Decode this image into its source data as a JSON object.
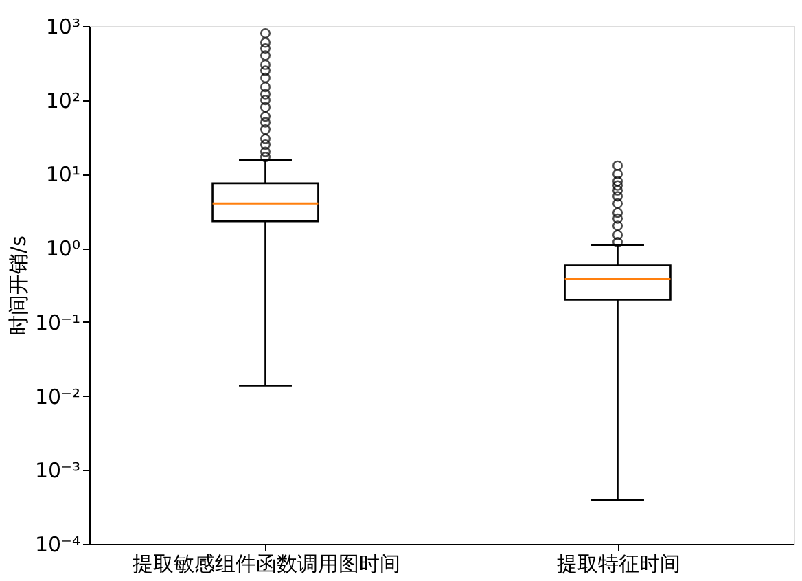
{
  "chart_data": {
    "type": "box",
    "ylabel": "时间开销/s",
    "categories": [
      "提取敏感组件函数调用图时间",
      "提取特征时间"
    ],
    "boxes": [
      {
        "low": 0.0138,
        "q1": 2.3,
        "median": 4.0,
        "q3": 7.5,
        "high": 15.5,
        "outliers": [
          17,
          20,
          25,
          30,
          40,
          50,
          60,
          80,
          100,
          120,
          150,
          200,
          250,
          300,
          400,
          500,
          600,
          800
        ]
      },
      {
        "low": 0.00039,
        "q1": 0.2,
        "median": 0.38,
        "q3": 0.58,
        "high": 1.1,
        "outliers": [
          1.2,
          1.5,
          2,
          2.5,
          3,
          4,
          5,
          6,
          7,
          8,
          10,
          13
        ]
      }
    ],
    "log": "y",
    "ylim": [
      0.0001,
      1000
    ],
    "yticks": [
      {
        "value": 0.0001,
        "label": "10⁻⁴"
      },
      {
        "value": 0.001,
        "label": "10⁻³"
      },
      {
        "value": 0.01,
        "label": "10⁻²"
      },
      {
        "value": 0.1,
        "label": "10⁻¹"
      },
      {
        "value": 1,
        "label": "10⁰"
      },
      {
        "value": 10,
        "label": "10¹"
      },
      {
        "value": 100,
        "label": "10²"
      },
      {
        "value": 1000,
        "label": "10³"
      }
    ]
  }
}
